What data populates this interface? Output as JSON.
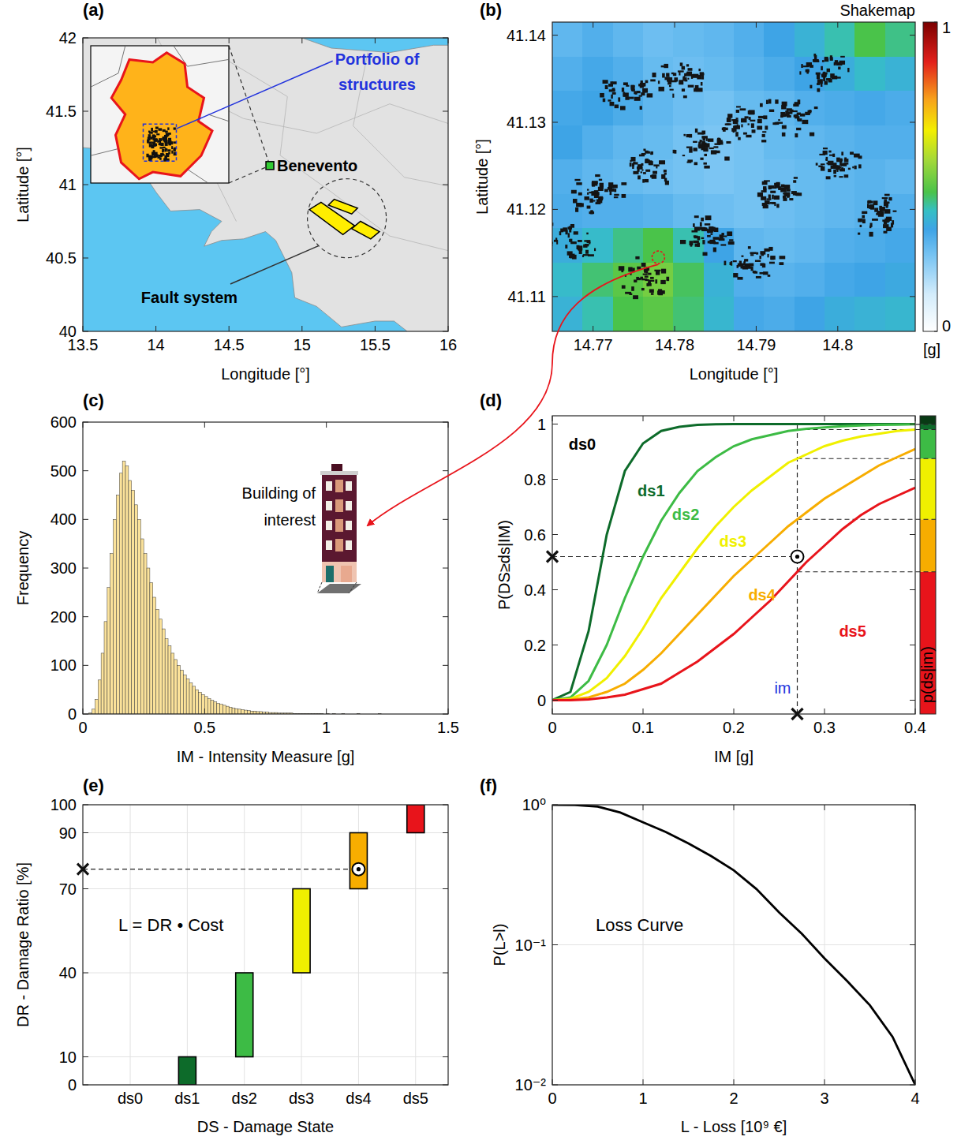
{
  "chart_data": [
    {
      "label": "(a)",
      "type": "map",
      "xlabel": "Longitude [°]",
      "ylabel": "Latitude [°]",
      "xlim": [
        13.5,
        16
      ],
      "ylim": [
        40,
        42
      ],
      "xticks": [
        13.5,
        14,
        14.5,
        15,
        15.5,
        16
      ],
      "yticks": [
        40,
        40.5,
        41,
        41.5,
        42
      ],
      "annotations": {
        "portfolio": "Portfolio of structures",
        "benevento": {
          "text": "Benevento",
          "lon": 14.78,
          "lat": 41.13
        },
        "fault_system": {
          "text": "Fault system",
          "faults": [
            [
              [
                15.05,
                40.83
              ],
              [
                15.13,
                40.88
              ],
              [
                15.36,
                40.72
              ],
              [
                15.28,
                40.66
              ]
            ],
            [
              [
                15.18,
                40.86
              ],
              [
                15.22,
                40.9
              ],
              [
                15.38,
                40.84
              ],
              [
                15.34,
                40.8
              ]
            ],
            [
              [
                15.34,
                40.7
              ],
              [
                15.4,
                40.75
              ],
              [
                15.53,
                40.68
              ],
              [
                15.47,
                40.63
              ]
            ]
          ]
        }
      }
    },
    {
      "label": "(b)",
      "type": "heatmap",
      "title": "Shakemap",
      "xlabel": "Longitude [°]",
      "ylabel": "Latitude [°]",
      "xlim": [
        14.765,
        14.8095
      ],
      "ylim": [
        41.106,
        41.1415
      ],
      "xticks": [
        14.77,
        14.78,
        14.79,
        14.8
      ],
      "yticks": [
        41.11,
        41.12,
        41.13,
        41.14
      ],
      "cells": [
        [
          0.28,
          0.3,
          0.28,
          0.26,
          0.27,
          0.28,
          0.3,
          0.33,
          0.36,
          0.4,
          0.45,
          0.42
        ],
        [
          0.3,
          0.32,
          0.3,
          0.27,
          0.26,
          0.27,
          0.29,
          0.31,
          0.33,
          0.35,
          0.38,
          0.36
        ],
        [
          0.32,
          0.33,
          0.31,
          0.28,
          0.26,
          0.25,
          0.27,
          0.28,
          0.3,
          0.31,
          0.32,
          0.31
        ],
        [
          0.33,
          0.3,
          0.28,
          0.27,
          0.25,
          0.24,
          0.25,
          0.27,
          0.28,
          0.29,
          0.3,
          0.3
        ],
        [
          0.3,
          0.28,
          0.27,
          0.26,
          0.25,
          0.24,
          0.25,
          0.26,
          0.27,
          0.28,
          0.29,
          0.28
        ],
        [
          0.31,
          0.3,
          0.3,
          0.29,
          0.27,
          0.26,
          0.25,
          0.26,
          0.27,
          0.28,
          0.29,
          0.3
        ],
        [
          0.35,
          0.38,
          0.42,
          0.45,
          0.4,
          0.33,
          0.28,
          0.27,
          0.28,
          0.3,
          0.31,
          0.32
        ],
        [
          0.38,
          0.43,
          0.47,
          0.5,
          0.44,
          0.36,
          0.3,
          0.29,
          0.3,
          0.32,
          0.33,
          0.34
        ],
        [
          0.36,
          0.4,
          0.45,
          0.47,
          0.43,
          0.37,
          0.32,
          0.31,
          0.33,
          0.35,
          0.36,
          0.37
        ]
      ],
      "colorbar": {
        "range": [
          0,
          1
        ],
        "ticks": [
          0,
          1
        ],
        "label": "[g]"
      },
      "site": {
        "lon": 14.778,
        "lat": 41.1145
      }
    },
    {
      "label": "(c)",
      "type": "histogram",
      "xlabel": "IM - Intensity Measure [g]",
      "ylabel": "Frequency",
      "bins": [
        0.025,
        0.0375,
        0.05,
        0.0625,
        0.075,
        0.0875,
        0.1,
        0.1125,
        0.125,
        0.1375,
        0.15,
        0.1625,
        0.175,
        0.1875,
        0.2,
        0.2125,
        0.225,
        0.2375,
        0.25,
        0.2625,
        0.275,
        0.2875,
        0.3,
        0.3125,
        0.325,
        0.3375,
        0.35,
        0.3625,
        0.375,
        0.3875,
        0.4,
        0.4125,
        0.425,
        0.4375,
        0.45,
        0.4625,
        0.475,
        0.4875,
        0.5,
        0.5125,
        0.525,
        0.5375,
        0.55,
        0.5625,
        0.575,
        0.5875,
        0.6,
        0.6125,
        0.625,
        0.6375,
        0.65,
        0.6625,
        0.675,
        0.6875,
        0.7,
        0.7125,
        0.725,
        0.7375,
        0.75,
        0.7625,
        0.775,
        0.7875,
        0.8,
        0.8125,
        0.825,
        0.8375,
        0.85,
        0.8625,
        0.875,
        0.8875,
        0.9,
        0.9125,
        0.925,
        0.9375,
        0.95,
        0.9625,
        0.975,
        0.9875,
        1.0,
        1.0125,
        1.025,
        1.0375,
        1.05,
        1.0625,
        1.075,
        1.0875,
        1.1,
        1.1125,
        1.125,
        1.1375,
        1.15,
        1.1625,
        1.175,
        1.1875,
        1.2,
        1.2125,
        1.225
      ],
      "values": [
        2,
        10,
        30,
        70,
        125,
        190,
        260,
        330,
        400,
        450,
        495,
        520,
        510,
        480,
        460,
        430,
        400,
        360,
        330,
        300,
        270,
        240,
        215,
        195,
        175,
        155,
        140,
        125,
        112,
        100,
        90,
        80,
        72,
        64,
        57,
        50,
        45,
        40,
        36,
        32,
        28,
        25,
        22,
        20,
        18,
        16,
        14,
        12,
        11,
        10,
        9,
        8,
        7,
        6,
        6,
        5,
        5,
        4,
        4,
        3,
        3,
        3,
        2,
        2,
        2,
        2,
        2,
        1,
        1,
        1,
        1,
        1,
        1,
        1,
        1,
        1,
        1,
        0,
        1,
        0,
        1,
        0,
        0,
        1,
        0,
        0,
        0,
        0,
        1,
        0,
        0,
        0,
        0,
        0,
        0,
        1
      ],
      "color": "#fbe29a",
      "xlim": [
        0,
        1.5
      ],
      "ylim": [
        0,
        600
      ],
      "xticks": [
        0,
        0.5,
        1,
        1.5
      ],
      "yticks": [
        0,
        100,
        200,
        300,
        400,
        500,
        600
      ],
      "annotations": {
        "building": "Building of interest"
      }
    },
    {
      "label": "(d)",
      "type": "line",
      "xlabel": "IM [g]",
      "ylabel": "P(DS≥ds|IM)",
      "x": [
        0,
        0.02,
        0.04,
        0.06,
        0.08,
        0.1,
        0.12,
        0.14,
        0.16,
        0.18,
        0.2,
        0.22,
        0.24,
        0.26,
        0.28,
        0.3,
        0.32,
        0.34,
        0.36,
        0.38,
        0.4
      ],
      "series": [
        {
          "name": "ds1",
          "color": "#0d6b2a",
          "values": [
            0,
            0.03,
            0.25,
            0.6,
            0.83,
            0.93,
            0.975,
            0.99,
            0.997,
            0.999,
            1,
            1,
            1,
            1,
            1,
            1,
            1,
            1,
            1,
            1,
            1
          ]
        },
        {
          "name": "ds2",
          "color": "#3dbb45",
          "values": [
            0,
            0.01,
            0.07,
            0.2,
            0.37,
            0.52,
            0.65,
            0.75,
            0.83,
            0.88,
            0.92,
            0.945,
            0.96,
            0.975,
            0.983,
            0.988,
            0.992,
            0.995,
            0.997,
            0.998,
            0.999
          ]
        },
        {
          "name": "ds3",
          "color": "#f0f000",
          "values": [
            0,
            0.005,
            0.03,
            0.08,
            0.16,
            0.26,
            0.37,
            0.46,
            0.55,
            0.63,
            0.7,
            0.76,
            0.81,
            0.86,
            0.89,
            0.92,
            0.94,
            0.955,
            0.965,
            0.975,
            0.98
          ]
        },
        {
          "name": "ds4",
          "color": "#f7ad00",
          "values": [
            0,
            0.002,
            0.01,
            0.03,
            0.06,
            0.11,
            0.17,
            0.24,
            0.31,
            0.38,
            0.45,
            0.51,
            0.57,
            0.63,
            0.68,
            0.73,
            0.77,
            0.81,
            0.85,
            0.88,
            0.91
          ]
        },
        {
          "name": "ds5",
          "color": "#e8141b",
          "values": [
            0,
            0,
            0.003,
            0.01,
            0.02,
            0.04,
            0.06,
            0.1,
            0.14,
            0.19,
            0.24,
            0.3,
            0.36,
            0.43,
            0.5,
            0.56,
            0.62,
            0.67,
            0.71,
            0.74,
            0.77
          ]
        }
      ],
      "xlim": [
        0,
        0.4
      ],
      "ylim": [
        -0.05,
        1.03
      ],
      "xticks": [
        0,
        0.1,
        0.2,
        0.3,
        0.4
      ],
      "yticks": [
        0,
        0.2,
        0.4,
        0.6,
        0.8,
        1
      ],
      "annotations": {
        "ds0": "ds0",
        "im_label": "im",
        "im": 0.27,
        "sample": 0.52,
        "im_exceedance": [
          0.999,
          0.98,
          0.875,
          0.655,
          0.465
        ],
        "side_bar_label": "p(ds|im)"
      }
    },
    {
      "label": "(e)",
      "type": "floating_bar",
      "xlabel": "DS - Damage State",
      "ylabel": "DR - Damage Ratio [%]",
      "categories": [
        "ds0",
        "ds1",
        "ds2",
        "ds3",
        "ds4",
        "ds5"
      ],
      "low": [
        null,
        0,
        10,
        40,
        70,
        90
      ],
      "high": [
        null,
        10,
        40,
        70,
        90,
        100
      ],
      "colors": [
        null,
        "#0d6b2a",
        "#3dbb45",
        "#f0f000",
        "#f7ad00",
        "#e8141b"
      ],
      "ylim": [
        0,
        100
      ],
      "yticks": [
        0,
        10,
        40,
        70,
        90,
        100
      ],
      "grid": true,
      "annotations": {
        "formula": "L = DR • Cost",
        "sample": 77,
        "sample_category": "ds4"
      }
    },
    {
      "label": "(f)",
      "type": "line",
      "log": "y",
      "xlabel": "L - Loss [10⁹ €]",
      "ylabel": "P(L>l)",
      "x": [
        0,
        0.25,
        0.5,
        0.75,
        1,
        1.25,
        1.5,
        1.75,
        2,
        2.25,
        2.5,
        2.75,
        3,
        3.25,
        3.5,
        3.75,
        4
      ],
      "values": [
        1,
        0.995,
        0.97,
        0.88,
        0.75,
        0.64,
        0.53,
        0.43,
        0.34,
        0.25,
        0.17,
        0.12,
        0.08,
        0.055,
        0.037,
        0.022,
        0.01
      ],
      "color": "#000000",
      "xlim": [
        0,
        4
      ],
      "ylim": [
        0.01,
        1
      ],
      "xticks": [
        0,
        1,
        2,
        3,
        4
      ],
      "yticks": [
        {
          "value": 0.01,
          "label": "10⁻²"
        },
        {
          "value": 0.1,
          "label": "10⁻¹"
        },
        {
          "value": 1,
          "label": "10⁰"
        }
      ],
      "grid": true,
      "annotations": {
        "title": "Loss Curve"
      }
    }
  ]
}
